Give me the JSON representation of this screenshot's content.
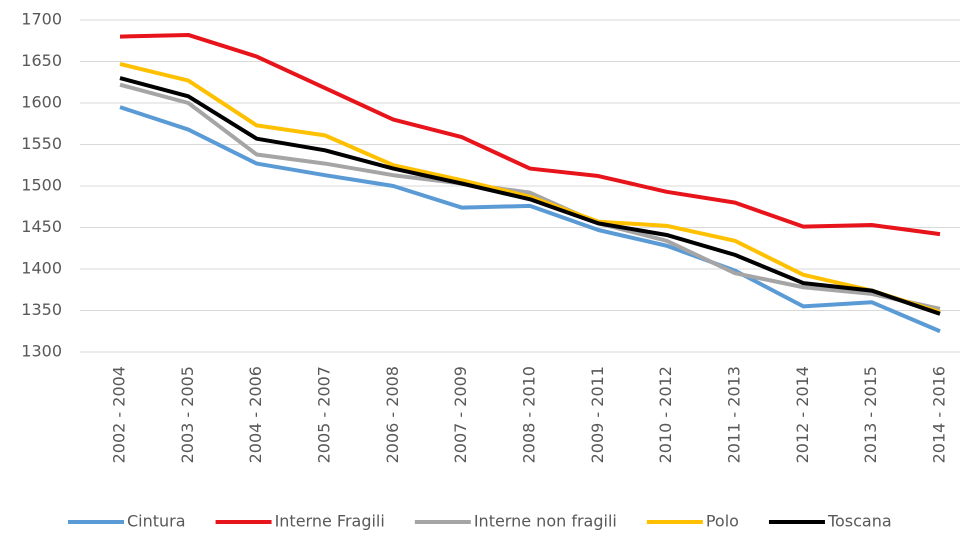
{
  "chart_data": {
    "type": "line",
    "categories": [
      "2002 - 2004",
      "2003 - 2005",
      "2004 - 2006",
      "2005 - 2007",
      "2006 - 2008",
      "2007 - 2009",
      "2008 - 2010",
      "2009 - 2011",
      "2010 - 2012",
      "2011 - 2013",
      "2012 - 2014",
      "2013 - 2015",
      "2014 - 2016"
    ],
    "series": [
      {
        "name": "Cintura",
        "color": "#5b9bd5",
        "values": [
          1595,
          1568,
          1527,
          1513,
          1500,
          1474,
          1476,
          1447,
          1428,
          1398,
          1355,
          1360,
          1325
        ]
      },
      {
        "name": "Interne Fragili",
        "color": "#e8141b",
        "values": [
          1680,
          1682,
          1656,
          1618,
          1580,
          1559,
          1521,
          1512,
          1493,
          1480,
          1451,
          1453,
          1442
        ]
      },
      {
        "name": "Interne non fragili",
        "color": "#a5a5a5",
        "values": [
          1622,
          1600,
          1538,
          1527,
          1513,
          1503,
          1492,
          1455,
          1434,
          1395,
          1378,
          1370,
          1352
        ]
      },
      {
        "name": "Polo",
        "color": "#ffc000",
        "values": [
          1647,
          1627,
          1573,
          1561,
          1525,
          1507,
          1487,
          1457,
          1452,
          1434,
          1393,
          1374,
          1348
        ]
      },
      {
        "name": "Toscana",
        "color": "#000000",
        "values": [
          1630,
          1608,
          1557,
          1543,
          1521,
          1503,
          1484,
          1455,
          1441,
          1417,
          1383,
          1374,
          1346
        ]
      }
    ],
    "ylim": [
      1300,
      1700
    ],
    "yticks": [
      1300,
      1350,
      1400,
      1450,
      1500,
      1550,
      1600,
      1650,
      1700
    ],
    "grid": true,
    "legend": "bottom"
  }
}
